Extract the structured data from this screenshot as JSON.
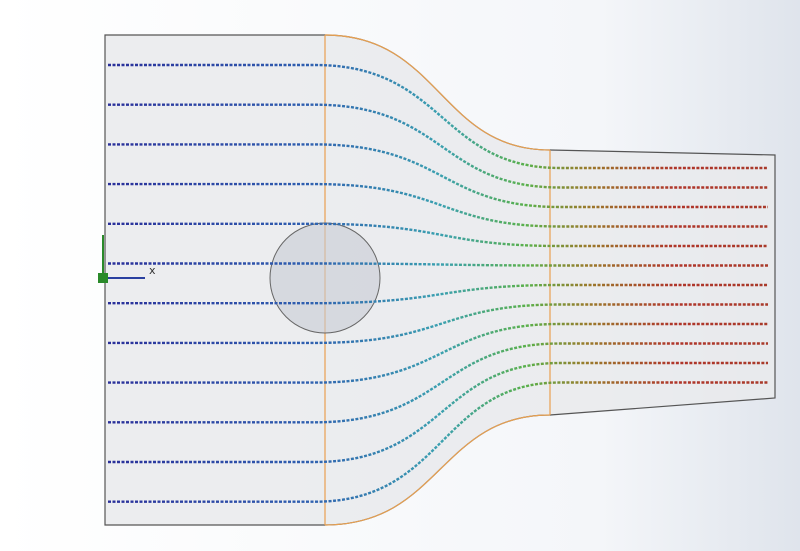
{
  "axis_label": "x"
}
